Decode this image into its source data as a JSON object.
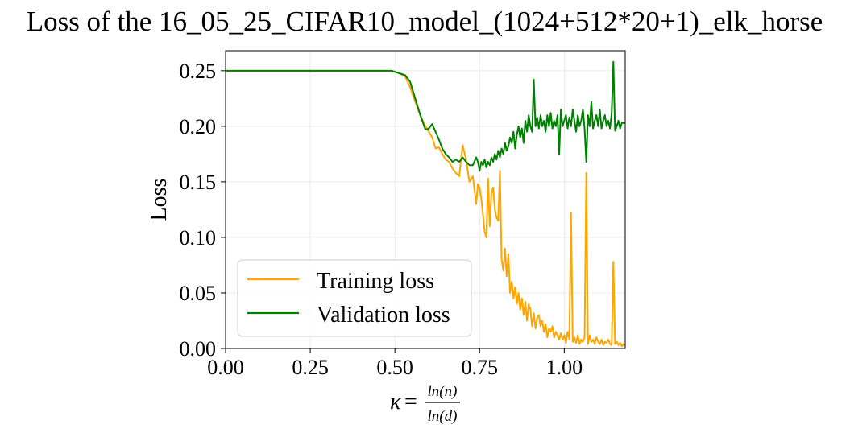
{
  "chart_data": {
    "type": "line",
    "title": "Loss of the 16_05_25_CIFAR10_model_(1024+512*20+1)_elk_horse",
    "xlabel": {
      "lhs": "κ",
      "eq": "=",
      "numerator": "ln(n)",
      "denominator": "ln(d)"
    },
    "ylabel": "Loss",
    "xlim": [
      0.0,
      1.18
    ],
    "ylim": [
      0.0,
      0.268
    ],
    "xticks": [
      0.0,
      0.25,
      0.5,
      0.75,
      1.0
    ],
    "xtick_labels": [
      "0.00",
      "0.25",
      "0.50",
      "0.75",
      "1.00"
    ],
    "yticks": [
      0.0,
      0.05,
      0.1,
      0.15,
      0.2,
      0.25
    ],
    "ytick_labels": [
      "0.00",
      "0.05",
      "0.10",
      "0.15",
      "0.20",
      "0.25"
    ],
    "grid": true,
    "legend_position": "lower-left",
    "series": [
      {
        "name": "Training loss",
        "color": "#ffa500",
        "x": [
          0.0,
          0.1,
          0.2,
          0.3,
          0.4,
          0.49,
          0.51,
          0.53,
          0.545,
          0.56,
          0.575,
          0.59,
          0.6,
          0.61,
          0.62,
          0.63,
          0.64,
          0.65,
          0.66,
          0.67,
          0.68,
          0.69,
          0.7,
          0.71,
          0.72,
          0.73,
          0.74,
          0.745,
          0.75,
          0.755,
          0.76,
          0.765,
          0.77,
          0.775,
          0.78,
          0.785,
          0.79,
          0.795,
          0.8,
          0.805,
          0.81,
          0.815,
          0.82,
          0.825,
          0.83,
          0.835,
          0.84,
          0.845,
          0.85,
          0.855,
          0.86,
          0.865,
          0.87,
          0.875,
          0.88,
          0.885,
          0.89,
          0.895,
          0.9,
          0.905,
          0.91,
          0.915,
          0.92,
          0.925,
          0.93,
          0.935,
          0.94,
          0.945,
          0.95,
          0.955,
          0.96,
          0.965,
          0.97,
          0.975,
          0.98,
          0.985,
          0.99,
          0.995,
          1.0,
          1.005,
          1.01,
          1.015,
          1.02,
          1.025,
          1.03,
          1.035,
          1.04,
          1.045,
          1.05,
          1.055,
          1.06,
          1.065,
          1.07,
          1.075,
          1.08,
          1.085,
          1.09,
          1.095,
          1.1,
          1.105,
          1.11,
          1.115,
          1.12,
          1.125,
          1.13,
          1.135,
          1.14,
          1.145,
          1.15,
          1.155,
          1.16,
          1.165,
          1.17,
          1.175,
          1.18
        ],
        "y": [
          0.25,
          0.25,
          0.25,
          0.25,
          0.25,
          0.25,
          0.248,
          0.245,
          0.235,
          0.222,
          0.21,
          0.2,
          0.195,
          0.19,
          0.18,
          0.181,
          0.175,
          0.17,
          0.168,
          0.162,
          0.158,
          0.155,
          0.183,
          0.17,
          0.15,
          0.155,
          0.13,
          0.148,
          0.145,
          0.135,
          0.12,
          0.105,
          0.1,
          0.153,
          0.11,
          0.14,
          0.145,
          0.125,
          0.118,
          0.115,
          0.16,
          0.08,
          0.07,
          0.09,
          0.065,
          0.085,
          0.05,
          0.06,
          0.045,
          0.055,
          0.04,
          0.05,
          0.035,
          0.045,
          0.03,
          0.042,
          0.025,
          0.04,
          0.035,
          0.02,
          0.032,
          0.018,
          0.028,
          0.03,
          0.02,
          0.025,
          0.015,
          0.022,
          0.01,
          0.018,
          0.015,
          0.02,
          0.01,
          0.015,
          0.012,
          0.008,
          0.014,
          0.008,
          0.012,
          0.005,
          0.015,
          0.008,
          0.122,
          0.006,
          0.01,
          0.005,
          0.012,
          0.004,
          0.008,
          0.006,
          0.01,
          0.158,
          0.004,
          0.012,
          0.006,
          0.008,
          0.004,
          0.01,
          0.006,
          0.004,
          0.008,
          0.003,
          0.006,
          0.005,
          0.008,
          0.004,
          0.003,
          0.078,
          0.004,
          0.006,
          0.003,
          0.005,
          0.002,
          0.004,
          0.003
        ]
      },
      {
        "name": "Validation loss",
        "color": "#008000",
        "x": [
          0.0,
          0.1,
          0.2,
          0.3,
          0.4,
          0.49,
          0.51,
          0.53,
          0.545,
          0.56,
          0.575,
          0.59,
          0.6,
          0.61,
          0.62,
          0.63,
          0.64,
          0.65,
          0.66,
          0.67,
          0.68,
          0.69,
          0.7,
          0.71,
          0.72,
          0.73,
          0.74,
          0.745,
          0.75,
          0.755,
          0.76,
          0.765,
          0.77,
          0.775,
          0.78,
          0.785,
          0.79,
          0.795,
          0.8,
          0.805,
          0.81,
          0.815,
          0.82,
          0.825,
          0.83,
          0.835,
          0.84,
          0.845,
          0.85,
          0.855,
          0.86,
          0.865,
          0.87,
          0.875,
          0.88,
          0.885,
          0.89,
          0.895,
          0.9,
          0.905,
          0.91,
          0.915,
          0.92,
          0.925,
          0.93,
          0.935,
          0.94,
          0.945,
          0.95,
          0.955,
          0.96,
          0.965,
          0.97,
          0.975,
          0.98,
          0.985,
          0.99,
          0.995,
          1.0,
          1.005,
          1.01,
          1.015,
          1.02,
          1.025,
          1.03,
          1.035,
          1.04,
          1.045,
          1.05,
          1.055,
          1.06,
          1.065,
          1.07,
          1.075,
          1.08,
          1.085,
          1.09,
          1.095,
          1.1,
          1.105,
          1.11,
          1.115,
          1.12,
          1.125,
          1.13,
          1.135,
          1.14,
          1.145,
          1.15,
          1.155,
          1.16,
          1.165,
          1.17,
          1.175,
          1.18
        ],
        "y": [
          0.25,
          0.25,
          0.25,
          0.25,
          0.25,
          0.25,
          0.248,
          0.246,
          0.24,
          0.225,
          0.21,
          0.197,
          0.198,
          0.202,
          0.195,
          0.188,
          0.18,
          0.175,
          0.172,
          0.168,
          0.17,
          0.168,
          0.172,
          0.168,
          0.165,
          0.165,
          0.172,
          0.168,
          0.16,
          0.168,
          0.165,
          0.17,
          0.163,
          0.168,
          0.165,
          0.172,
          0.168,
          0.175,
          0.17,
          0.178,
          0.172,
          0.18,
          0.175,
          0.185,
          0.178,
          0.182,
          0.19,
          0.185,
          0.195,
          0.18,
          0.192,
          0.2,
          0.19,
          0.198,
          0.185,
          0.205,
          0.195,
          0.21,
          0.2,
          0.195,
          0.242,
          0.2,
          0.208,
          0.198,
          0.21,
          0.2,
          0.205,
          0.195,
          0.21,
          0.2,
          0.212,
          0.198,
          0.205,
          0.2,
          0.21,
          0.175,
          0.215,
          0.2,
          0.205,
          0.21,
          0.198,
          0.208,
          0.2,
          0.215,
          0.205,
          0.195,
          0.21,
          0.2,
          0.205,
          0.215,
          0.198,
          0.168,
          0.21,
          0.2,
          0.222,
          0.198,
          0.205,
          0.21,
          0.2,
          0.215,
          0.198,
          0.205,
          0.21,
          0.2,
          0.205,
          0.198,
          0.212,
          0.258,
          0.196,
          0.2,
          0.205,
          0.198,
          0.203,
          0.203,
          0.203
        ]
      }
    ]
  }
}
